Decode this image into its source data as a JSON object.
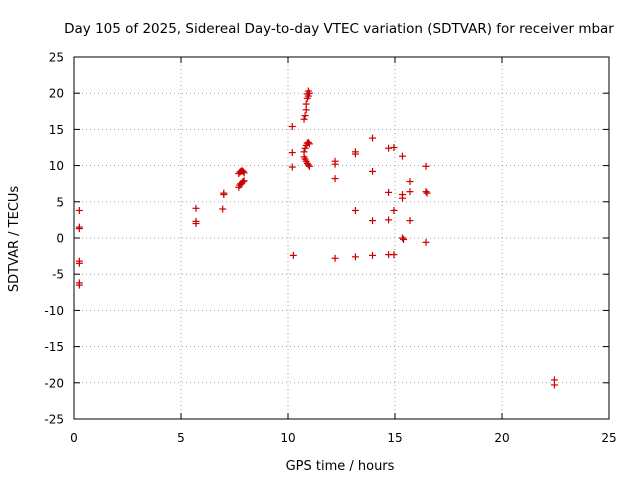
{
  "chart_data": {
    "type": "scatter",
    "title": "Day 105 of 2025, Sidereal Day-to-day VTEC variation (SDTVAR) for receiver mbar",
    "xlabel": "GPS time / hours",
    "ylabel": "SDTVAR / TECUs",
    "xlim": [
      0,
      25
    ],
    "ylim": [
      -25,
      25
    ],
    "xticks": [
      0,
      5,
      10,
      15,
      20,
      25
    ],
    "yticks": [
      25,
      20,
      15,
      10,
      5,
      0,
      -5,
      -10,
      -15,
      -20,
      -25
    ],
    "grid": true,
    "marker": "+",
    "color": "#cc0000",
    "series": [
      {
        "points": [
          [
            0.25,
            3.8
          ],
          [
            0.25,
            1.5
          ],
          [
            0.25,
            1.3
          ],
          [
            0.25,
            -3.2
          ],
          [
            0.25,
            -3.5
          ],
          [
            0.25,
            -6.2
          ],
          [
            0.25,
            -6.5
          ],
          [
            5.7,
            4.1
          ],
          [
            5.7,
            2.3
          ],
          [
            5.7,
            2.0
          ],
          [
            6.95,
            4.0
          ],
          [
            7.0,
            6.2
          ],
          [
            7.0,
            6.0
          ],
          [
            7.7,
            7.0
          ],
          [
            7.75,
            7.3
          ],
          [
            7.8,
            7.5
          ],
          [
            7.85,
            7.6
          ],
          [
            7.9,
            7.8
          ],
          [
            7.95,
            7.9
          ],
          [
            7.7,
            8.9
          ],
          [
            7.75,
            9.1
          ],
          [
            7.8,
            9.2
          ],
          [
            7.85,
            9.3
          ],
          [
            7.9,
            9.2
          ],
          [
            7.95,
            9.0
          ],
          [
            10.2,
            15.4
          ],
          [
            10.2,
            11.8
          ],
          [
            10.2,
            9.8
          ],
          [
            10.25,
            -2.4
          ],
          [
            10.75,
            16.4
          ],
          [
            10.8,
            16.9
          ],
          [
            10.85,
            17.7
          ],
          [
            10.85,
            18.5
          ],
          [
            10.9,
            19.3
          ],
          [
            10.9,
            19.9
          ],
          [
            10.95,
            20.3
          ],
          [
            11.0,
            20.0
          ],
          [
            10.95,
            19.6
          ],
          [
            10.75,
            11.9
          ],
          [
            10.8,
            12.4
          ],
          [
            10.85,
            12.8
          ],
          [
            10.9,
            13.1
          ],
          [
            10.95,
            13.2
          ],
          [
            11.0,
            13.0
          ],
          [
            10.75,
            11.2
          ],
          [
            10.8,
            10.9
          ],
          [
            10.85,
            10.6
          ],
          [
            10.9,
            10.3
          ],
          [
            10.95,
            10.1
          ],
          [
            11.0,
            9.9
          ],
          [
            12.2,
            10.6
          ],
          [
            12.2,
            10.2
          ],
          [
            12.2,
            8.2
          ],
          [
            12.2,
            -2.8
          ],
          [
            13.15,
            11.9
          ],
          [
            13.15,
            11.6
          ],
          [
            13.15,
            3.8
          ],
          [
            13.15,
            -2.6
          ],
          [
            13.95,
            13.8
          ],
          [
            13.95,
            9.2
          ],
          [
            13.95,
            2.4
          ],
          [
            13.95,
            -2.4
          ],
          [
            14.7,
            12.4
          ],
          [
            14.7,
            6.3
          ],
          [
            14.7,
            2.5
          ],
          [
            14.7,
            -2.3
          ],
          [
            14.95,
            12.5
          ],
          [
            14.95,
            3.8
          ],
          [
            14.95,
            -2.3
          ],
          [
            15.35,
            11.3
          ],
          [
            15.35,
            6.0
          ],
          [
            15.35,
            5.5
          ],
          [
            15.35,
            0.0
          ],
          [
            15.4,
            -0.2
          ],
          [
            15.7,
            7.8
          ],
          [
            15.7,
            6.4
          ],
          [
            15.7,
            2.4
          ],
          [
            16.45,
            9.9
          ],
          [
            16.45,
            6.4
          ],
          [
            16.5,
            6.2
          ],
          [
            16.45,
            -0.6
          ],
          [
            22.45,
            -19.6
          ],
          [
            22.45,
            -20.3
          ]
        ]
      }
    ]
  }
}
